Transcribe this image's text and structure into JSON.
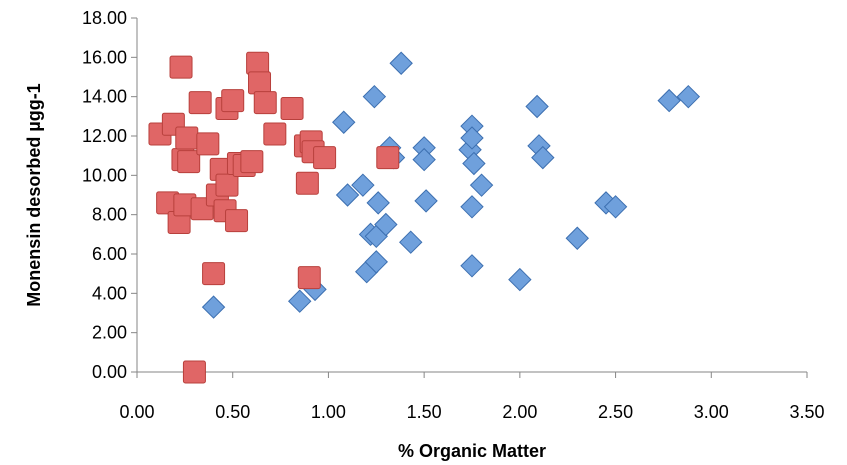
{
  "chart_data": {
    "type": "scatter",
    "title": "",
    "xlabel": "% Organic Matter",
    "ylabel": "Monensin desorbed µgg-1",
    "xlim": [
      0,
      3.5
    ],
    "ylim": [
      0,
      18
    ],
    "x_ticks": [
      "0.00",
      "0.50",
      "1.00",
      "1.50",
      "2.00",
      "2.50",
      "3.00",
      "3.50"
    ],
    "y_ticks": [
      "0.00",
      "2.00",
      "4.00",
      "6.00",
      "8.00",
      "10.00",
      "12.00",
      "14.00",
      "16.00",
      "18.00"
    ],
    "grid": false,
    "legend": "none",
    "series": [
      {
        "marker": "diamond",
        "color": "#6fa0dc",
        "edge_color": "#3c6fb0",
        "points": [
          [
            0.4,
            3.3
          ],
          [
            0.85,
            3.6
          ],
          [
            0.93,
            4.2
          ],
          [
            1.08,
            12.7
          ],
          [
            1.1,
            9.0
          ],
          [
            1.18,
            9.5
          ],
          [
            1.2,
            5.1
          ],
          [
            1.22,
            7.0
          ],
          [
            1.24,
            14.0
          ],
          [
            1.25,
            5.6
          ],
          [
            1.25,
            6.9
          ],
          [
            1.26,
            8.6
          ],
          [
            1.3,
            7.5
          ],
          [
            1.32,
            11.4
          ],
          [
            1.34,
            10.9
          ],
          [
            1.38,
            15.7
          ],
          [
            1.43,
            6.6
          ],
          [
            1.5,
            11.4
          ],
          [
            1.5,
            10.8
          ],
          [
            1.51,
            8.7
          ],
          [
            1.74,
            11.3
          ],
          [
            1.75,
            12.5
          ],
          [
            1.75,
            11.9
          ],
          [
            1.76,
            10.6
          ],
          [
            1.75,
            8.4
          ],
          [
            1.75,
            5.4
          ],
          [
            1.8,
            9.5
          ],
          [
            2.0,
            4.7
          ],
          [
            2.09,
            13.5
          ],
          [
            2.1,
            11.5
          ],
          [
            2.12,
            10.9
          ],
          [
            2.3,
            6.8
          ],
          [
            2.45,
            8.6
          ],
          [
            2.5,
            8.4
          ],
          [
            2.78,
            13.8
          ],
          [
            2.88,
            14.0
          ]
        ]
      },
      {
        "marker": "square",
        "color": "#e06666",
        "edge_color": "#b8403c",
        "points": [
          [
            0.12,
            12.1
          ],
          [
            0.16,
            8.6
          ],
          [
            0.19,
            12.6
          ],
          [
            0.22,
            7.6
          ],
          [
            0.23,
            15.5
          ],
          [
            0.24,
            10.8
          ],
          [
            0.25,
            8.5
          ],
          [
            0.26,
            11.9
          ],
          [
            0.27,
            10.7
          ],
          [
            0.3,
            0.0
          ],
          [
            0.33,
            13.7
          ],
          [
            0.34,
            8.3
          ],
          [
            0.37,
            11.6
          ],
          [
            0.4,
            5.0
          ],
          [
            0.42,
            9.0
          ],
          [
            0.44,
            10.3
          ],
          [
            0.46,
            8.2
          ],
          [
            0.47,
            9.5
          ],
          [
            0.47,
            13.4
          ],
          [
            0.5,
            13.8
          ],
          [
            0.52,
            7.7
          ],
          [
            0.53,
            10.6
          ],
          [
            0.56,
            10.5
          ],
          [
            0.6,
            10.7
          ],
          [
            0.63,
            15.7
          ],
          [
            0.64,
            14.7
          ],
          [
            0.67,
            13.7
          ],
          [
            0.72,
            12.1
          ],
          [
            0.81,
            13.4
          ],
          [
            0.88,
            11.5
          ],
          [
            0.89,
            9.6
          ],
          [
            0.9,
            4.8
          ],
          [
            0.91,
            11.7
          ],
          [
            0.92,
            11.2
          ],
          [
            0.98,
            10.9
          ],
          [
            1.31,
            10.9
          ]
        ]
      }
    ]
  }
}
